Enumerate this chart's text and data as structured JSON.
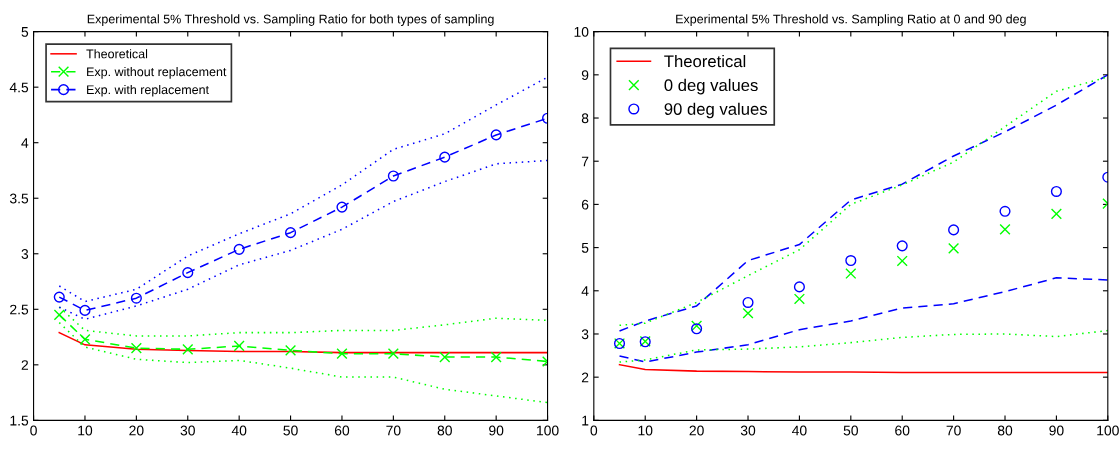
{
  "chart_data": [
    {
      "type": "line",
      "title": "Experimental 5% Threshold vs. Sampling Ratio for both types of sampling",
      "x": [
        5,
        10,
        20,
        30,
        40,
        50,
        60,
        70,
        80,
        90,
        100
      ],
      "xlim": [
        0,
        100
      ],
      "xticks": [
        0,
        10,
        20,
        30,
        40,
        50,
        60,
        70,
        80,
        90,
        100
      ],
      "ylim": [
        1.5,
        5
      ],
      "yticks": [
        1.5,
        2,
        2.5,
        3,
        3.5,
        4,
        4.5,
        5
      ],
      "grid": false,
      "legend": "top left",
      "series": [
        {
          "name": "Theoretical",
          "color": "#ff0000",
          "line_style": "solid",
          "marker": "none",
          "values": [
            2.29,
            2.18,
            2.14,
            2.13,
            2.12,
            2.12,
            2.11,
            2.11,
            2.11,
            2.11,
            2.11
          ]
        },
        {
          "name": "Exp. without replacement",
          "color": "#00ff00",
          "line_style": "dashed",
          "marker": "cross",
          "values": [
            2.45,
            2.23,
            2.15,
            2.14,
            2.17,
            2.13,
            2.1,
            2.1,
            2.07,
            2.07,
            2.03
          ]
        },
        {
          "name": "Exp. with replacement",
          "color": "#0000ff",
          "line_style": "dashed",
          "marker": "circle",
          "values": [
            2.61,
            2.49,
            2.6,
            2.83,
            3.04,
            3.19,
            3.42,
            3.7,
            3.87,
            4.07,
            4.22
          ]
        },
        {
          "color": "#00ff00",
          "line_style": "dotted",
          "marker": "none",
          "values": [
            2.52,
            2.31,
            2.26,
            2.26,
            2.29,
            2.29,
            2.31,
            2.31,
            2.36,
            2.42,
            2.4
          ]
        },
        {
          "color": "#00ff00",
          "line_style": "dotted",
          "marker": "none",
          "values": [
            2.38,
            2.16,
            2.05,
            2.02,
            2.04,
            1.97,
            1.89,
            1.89,
            1.78,
            1.72,
            1.66
          ]
        },
        {
          "color": "#0000ff",
          "line_style": "dotted",
          "marker": "none",
          "values": [
            2.71,
            2.57,
            2.68,
            2.98,
            3.18,
            3.36,
            3.62,
            3.94,
            4.08,
            4.34,
            4.59
          ]
        },
        {
          "color": "#0000ff",
          "line_style": "dotted",
          "marker": "none",
          "values": [
            2.52,
            2.41,
            2.53,
            2.68,
            2.9,
            3.03,
            3.22,
            3.47,
            3.65,
            3.81,
            3.84
          ]
        }
      ]
    },
    {
      "type": "line",
      "title": "Experimental 5% Threshold vs. Sampling Ratio at 0 and 90 deg",
      "x": [
        5,
        10,
        20,
        30,
        40,
        50,
        60,
        70,
        80,
        90,
        100
      ],
      "xlim": [
        0,
        100
      ],
      "xticks": [
        0,
        10,
        20,
        30,
        40,
        50,
        60,
        70,
        80,
        90,
        100
      ],
      "ylim": [
        1,
        10
      ],
      "yticks": [
        1,
        2,
        3,
        4,
        5,
        6,
        7,
        8,
        9,
        10
      ],
      "grid": false,
      "legend": "top left",
      "series": [
        {
          "name": "Theoretical",
          "color": "#ff0000",
          "line_style": "solid",
          "marker": "none",
          "values": [
            2.29,
            2.18,
            2.14,
            2.13,
            2.12,
            2.12,
            2.11,
            2.11,
            2.11,
            2.11,
            2.11
          ]
        },
        {
          "name": "0 deg values",
          "type": "scatter",
          "color": "#00ff00",
          "marker": "cross",
          "values": [
            2.78,
            2.83,
            3.19,
            3.48,
            3.81,
            4.4,
            4.69,
            4.98,
            5.42,
            5.78,
            6.02
          ]
        },
        {
          "name": "90 deg values",
          "type": "scatter",
          "color": "#0000ff",
          "marker": "circle",
          "values": [
            2.78,
            2.82,
            3.12,
            3.73,
            4.09,
            4.7,
            5.04,
            5.41,
            5.84,
            6.3,
            6.63
          ]
        },
        {
          "color": "#0000ff",
          "line_style": "dashed",
          "marker": "none",
          "values": [
            3.07,
            3.3,
            3.65,
            4.7,
            5.07,
            6.1,
            6.47,
            7.12,
            7.68,
            8.3,
            9.0
          ]
        },
        {
          "color": "#0000ff",
          "line_style": "dashed",
          "marker": "none",
          "values": [
            2.49,
            2.35,
            2.58,
            2.75,
            3.1,
            3.3,
            3.6,
            3.7,
            3.98,
            4.3,
            4.25
          ]
        },
        {
          "color": "#00ff00",
          "line_style": "dotted",
          "marker": "none",
          "values": [
            3.2,
            3.25,
            3.73,
            4.35,
            4.95,
            6.0,
            6.45,
            6.98,
            7.8,
            8.62,
            8.95
          ]
        },
        {
          "color": "#00ff00",
          "line_style": "dotted",
          "marker": "none",
          "values": [
            2.35,
            2.4,
            2.63,
            2.65,
            2.7,
            2.8,
            2.92,
            2.99,
            3.0,
            2.94,
            3.08
          ]
        }
      ]
    }
  ]
}
